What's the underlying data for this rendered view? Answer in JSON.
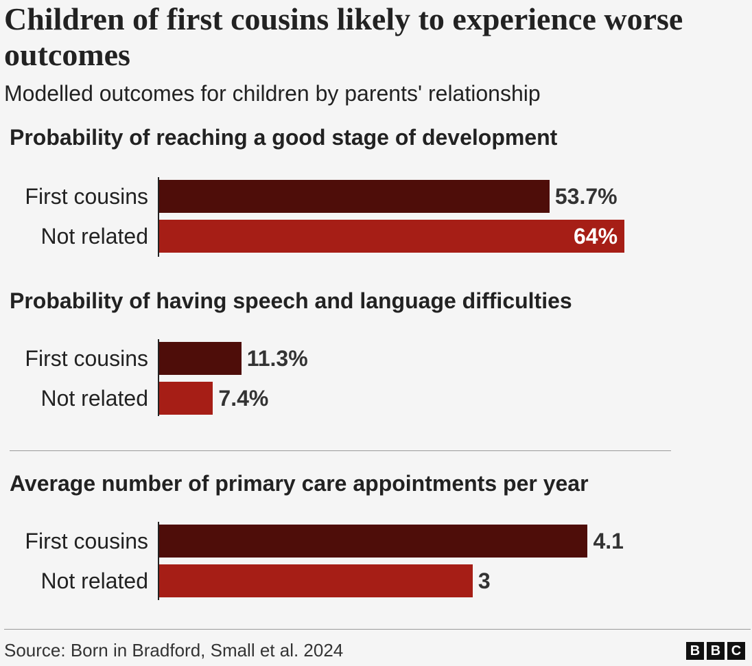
{
  "header": {
    "title": "Children of first cousins likely to experience worse outcomes",
    "subtitle": "Modelled outcomes for children by parents' relationship"
  },
  "chart_data": [
    {
      "type": "bar",
      "orientation": "horizontal",
      "title": "Probability of reaching a good stage of development",
      "categories": [
        "First cousins",
        "Not related"
      ],
      "values": [
        53.7,
        64
      ],
      "value_labels": [
        "53.7%",
        "64%"
      ],
      "colors": [
        "#4e0d09",
        "#a61e16"
      ],
      "xlim": [
        0,
        64
      ]
    },
    {
      "type": "bar",
      "orientation": "horizontal",
      "title": "Probability of having speech and language difficulties",
      "categories": [
        "First cousins",
        "Not related"
      ],
      "values": [
        11.3,
        7.4
      ],
      "value_labels": [
        "11.3%",
        "7.4%"
      ],
      "colors": [
        "#4e0d09",
        "#a61e16"
      ],
      "xlim": [
        0,
        64
      ]
    },
    {
      "type": "bar",
      "orientation": "horizontal",
      "title": "Average number of primary care appointments per year",
      "categories": [
        "First cousins",
        "Not related"
      ],
      "values": [
        4.1,
        3
      ],
      "value_labels": [
        "4.1",
        "3"
      ],
      "colors": [
        "#4e0d09",
        "#a61e16"
      ],
      "xlim": [
        0,
        5.2
      ]
    }
  ],
  "footer": {
    "source": "Source: Born in Bradford, Small et al. 2024",
    "logo_letters": [
      "B",
      "B",
      "C"
    ]
  }
}
